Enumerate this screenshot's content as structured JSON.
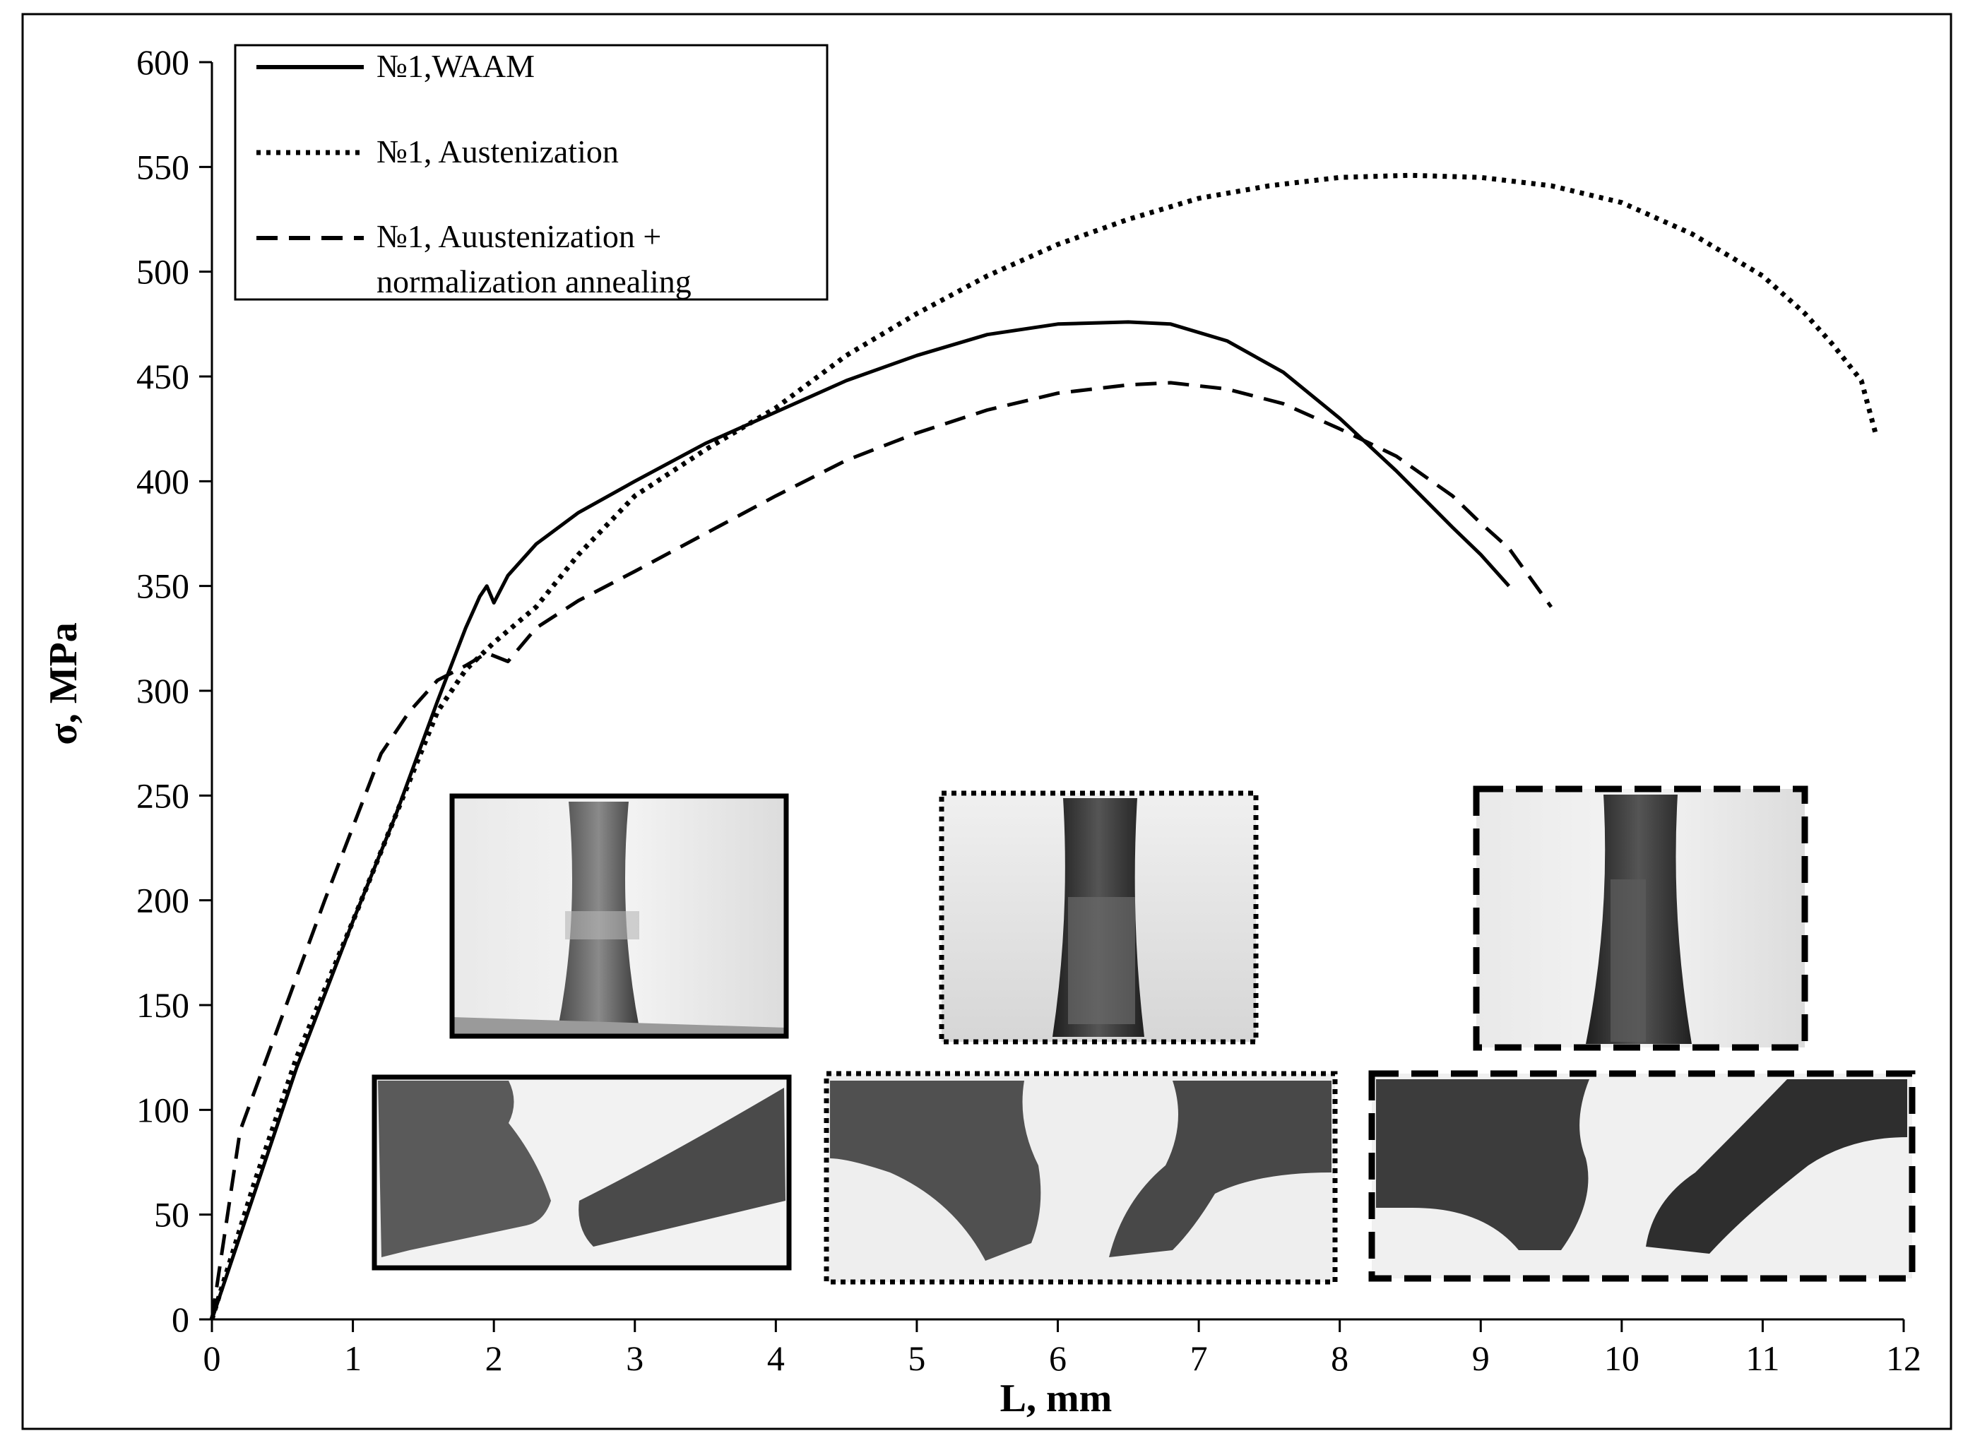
{
  "chart_data": {
    "type": "line",
    "xlabel": "L, mm",
    "ylabel": "σ, MPa",
    "xlim": [
      0,
      12
    ],
    "ylim": [
      0,
      600
    ],
    "xticks": [
      0,
      1,
      2,
      3,
      4,
      5,
      6,
      7,
      8,
      9,
      10,
      11,
      12
    ],
    "yticks": [
      0,
      50,
      100,
      150,
      200,
      250,
      300,
      350,
      400,
      450,
      500,
      550,
      600
    ],
    "grid": false,
    "legend_position": "top-left",
    "series": [
      {
        "name": "№1,WAAM",
        "style": "solid",
        "x": [
          0,
          0.3,
          0.6,
          1.0,
          1.3,
          1.6,
          1.8,
          1.9,
          1.95,
          2.0,
          2.1,
          2.3,
          2.6,
          3.0,
          3.5,
          4.0,
          4.5,
          5.0,
          5.5,
          6.0,
          6.5,
          6.8,
          7.2,
          7.6,
          8.0,
          8.4,
          8.8,
          9.0,
          9.2
        ],
        "y": [
          0,
          60,
          120,
          190,
          240,
          295,
          330,
          345,
          350,
          342,
          355,
          370,
          385,
          400,
          418,
          433,
          448,
          460,
          470,
          475,
          476,
          475,
          467,
          452,
          430,
          405,
          378,
          365,
          350
        ]
      },
      {
        "name": "№1, Austenization",
        "style": "dotted",
        "x": [
          0,
          0.3,
          0.6,
          1.0,
          1.3,
          1.6,
          1.8,
          2.0,
          2.3,
          2.6,
          3.0,
          3.5,
          4.0,
          4.5,
          5.0,
          5.5,
          6.0,
          6.5,
          7.0,
          7.5,
          8.0,
          8.5,
          9.0,
          9.5,
          10.0,
          10.5,
          11.0,
          11.3,
          11.5,
          11.7,
          11.8
        ],
        "y": [
          0,
          65,
          125,
          190,
          240,
          290,
          310,
          323,
          340,
          365,
          393,
          415,
          435,
          460,
          480,
          498,
          513,
          525,
          535,
          541,
          545,
          546,
          545,
          541,
          533,
          518,
          498,
          480,
          465,
          448,
          423
        ]
      },
      {
        "name": "№1, Auustenization + normalization annealing",
        "style": "dashed",
        "x": [
          0,
          0.2,
          0.5,
          0.8,
          1.0,
          1.2,
          1.4,
          1.6,
          1.8,
          1.95,
          2.1,
          2.3,
          2.6,
          3.0,
          3.5,
          4.0,
          4.5,
          5.0,
          5.5,
          6.0,
          6.5,
          6.8,
          7.2,
          7.6,
          8.0,
          8.4,
          8.8,
          9.0,
          9.2,
          9.5
        ],
        "y": [
          0,
          90,
          145,
          200,
          235,
          270,
          290,
          305,
          312,
          318,
          314,
          330,
          343,
          357,
          375,
          393,
          410,
          423,
          434,
          442,
          446,
          447,
          444,
          437,
          425,
          412,
          393,
          380,
          368,
          340
        ]
      }
    ]
  },
  "legend": {
    "entries": [
      "№1,WAAM",
      "№1, Austenization",
      "№1, Auustenization +",
      "normalization annealing"
    ]
  },
  "insets": [
    {
      "label": "waam-specimen-photo",
      "frame": "solid"
    },
    {
      "label": "austenization-specimen-photo",
      "frame": "dotted"
    },
    {
      "label": "annealed-specimen-photo",
      "frame": "dashed"
    },
    {
      "label": "waam-fracture-photo",
      "frame": "solid"
    },
    {
      "label": "austenization-fracture-photo",
      "frame": "dotted"
    },
    {
      "label": "annealed-fracture-photo",
      "frame": "dashed"
    }
  ]
}
